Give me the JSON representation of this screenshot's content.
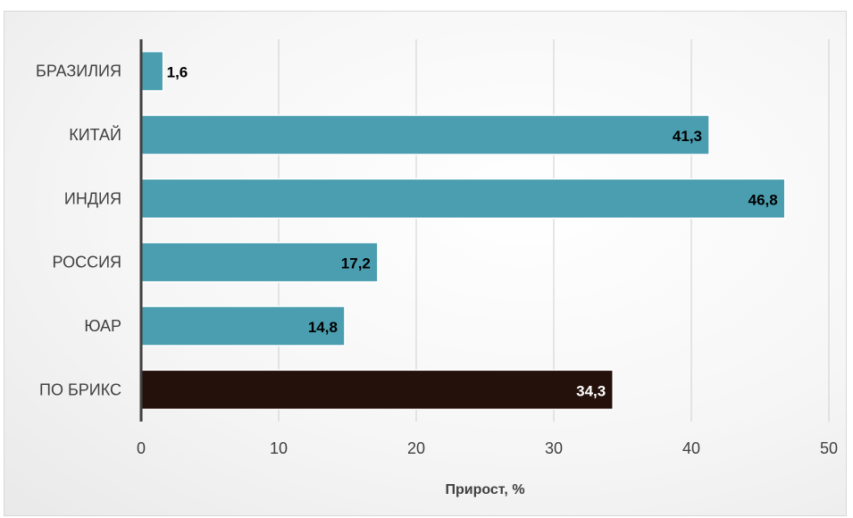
{
  "chart_data": {
    "type": "bar",
    "orientation": "horizontal",
    "categories": [
      "БРАЗИЛИЯ",
      "КИТАЙ",
      "ИНДИЯ",
      "РОССИЯ",
      "ЮАР",
      "ПО БРИКС"
    ],
    "values": [
      1.6,
      41.3,
      46.8,
      17.2,
      14.8,
      34.3
    ],
    "data_labels": [
      "1,6",
      "41,3",
      "46,8",
      "17,2",
      "14,8",
      "34,3"
    ],
    "xlabel": "Прирост, %",
    "ylabel": "",
    "xlim": [
      0,
      50
    ],
    "x_ticks": [
      0,
      10,
      20,
      30,
      40,
      50
    ],
    "x_tick_labels": [
      "0",
      "10",
      "20",
      "30",
      "40",
      "50"
    ],
    "grid": "vertical",
    "legend": "none",
    "colors": {
      "bar": "#4a9eb0",
      "highlight_bar": "#24110b",
      "gridline": "#cfcfcf",
      "axis": "#404040"
    }
  }
}
